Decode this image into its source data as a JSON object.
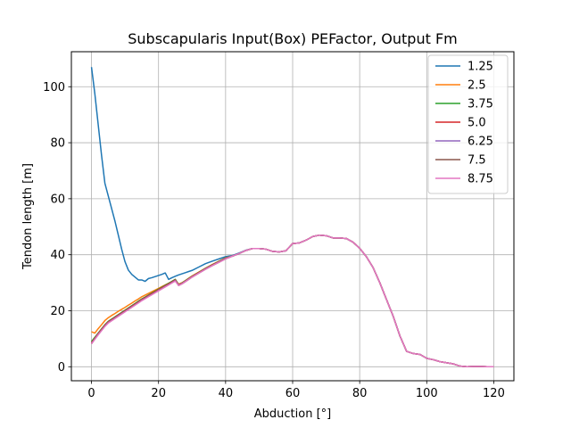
{
  "chart_data": {
    "type": "line",
    "title": "Subscapularis Input(Box) PEFactor, Output Fm",
    "xlabel": "Abduction [°]",
    "ylabel": "Tendon length [m]",
    "xlim": [
      -6,
      126
    ],
    "ylim": [
      -5,
      112.5
    ],
    "xticks": [
      0,
      20,
      40,
      60,
      80,
      100,
      120
    ],
    "yticks": [
      0,
      20,
      40,
      60,
      80,
      100
    ],
    "grid": true,
    "legend_position": "top-right",
    "series": [
      {
        "name": "1.25",
        "color": "#1f77b4",
        "x": [
          0,
          1,
          2,
          3,
          4,
          5,
          6,
          7,
          8,
          9,
          10,
          11,
          12,
          13,
          14,
          15,
          16,
          17,
          18,
          19,
          20,
          21,
          22,
          23,
          24,
          25,
          26,
          27,
          28,
          29,
          30,
          32,
          34,
          36,
          38,
          40,
          42,
          44,
          46,
          48,
          50,
          52,
          54,
          56,
          58,
          60,
          62,
          64,
          66,
          68,
          70,
          72,
          74,
          76,
          78,
          80,
          82,
          84,
          86,
          88,
          90,
          92,
          94,
          96,
          98,
          100,
          102,
          104,
          106,
          108,
          110,
          112,
          114,
          116,
          118,
          120
        ],
        "y": [
          107.0,
          97.5,
          86.5,
          75.5,
          65.5,
          61.0,
          56.5,
          52.0,
          47.0,
          42.0,
          37.5,
          34.5,
          33.0,
          32.0,
          31.0,
          31.0,
          30.5,
          31.5,
          31.8,
          32.2,
          32.6,
          33.0,
          33.5,
          31.2,
          31.8,
          32.3,
          32.8,
          33.2,
          33.6,
          34.0,
          34.4,
          35.6,
          36.8,
          37.7,
          38.5,
          39.3,
          39.7,
          40.6,
          41.6,
          42.2,
          42.2,
          42.0,
          41.2,
          41.0,
          41.4,
          44.0,
          44.2,
          45.2,
          46.5,
          47.0,
          46.8,
          46.0,
          46.0,
          45.8,
          44.5,
          42.3,
          39.3,
          35.4,
          30.0,
          24.0,
          18.0,
          11.0,
          5.5,
          4.7,
          4.4,
          3.0,
          2.5,
          1.8,
          1.4,
          1.0,
          0.2,
          0.0,
          0.1,
          0.1,
          0.0,
          0.0
        ]
      },
      {
        "name": "2.5",
        "color": "#ff7f0e",
        "x": [
          0,
          1,
          2,
          3,
          4,
          5,
          6,
          7,
          8,
          9,
          10,
          11,
          12,
          13,
          14,
          15,
          16,
          17,
          18,
          19,
          20,
          21,
          22,
          23,
          24,
          25,
          26,
          27,
          28,
          29,
          30,
          32,
          34,
          36,
          38,
          40,
          42,
          44,
          46,
          48,
          50,
          52,
          54,
          56,
          58,
          60,
          62,
          64,
          66,
          68,
          70,
          72,
          74,
          76,
          78,
          80,
          82,
          84,
          86,
          88,
          90,
          92,
          94,
          96,
          98,
          100,
          102,
          104,
          106,
          108,
          110,
          112,
          114,
          116,
          118,
          120
        ],
        "y": [
          12.5,
          12.0,
          13.6,
          15.0,
          16.5,
          17.5,
          18.3,
          19.0,
          19.8,
          20.5,
          21.2,
          22.0,
          22.7,
          23.5,
          24.2,
          25.0,
          25.6,
          26.2,
          26.8,
          27.4,
          28.0,
          28.6,
          29.2,
          29.8,
          30.4,
          31.0,
          29.5,
          30.0,
          30.8,
          31.6,
          32.4,
          33.8,
          35.2,
          36.5,
          37.7,
          38.9,
          39.5,
          40.4,
          41.5,
          42.2,
          42.2,
          42.0,
          41.2,
          41.0,
          41.4,
          44.0,
          44.2,
          45.2,
          46.5,
          47.0,
          46.8,
          46.0,
          46.0,
          45.8,
          44.5,
          42.3,
          39.3,
          35.4,
          30.0,
          24.0,
          18.0,
          11.0,
          5.5,
          4.7,
          4.4,
          3.0,
          2.5,
          1.8,
          1.4,
          1.0,
          0.2,
          0.0,
          0.1,
          0.1,
          0.0,
          0.0
        ]
      },
      {
        "name": "3.75",
        "color": "#2ca02c",
        "x": [
          0,
          1,
          2,
          3,
          4,
          5,
          6,
          7,
          8,
          9,
          10,
          11,
          12,
          13,
          14,
          15,
          16,
          17,
          18,
          19,
          20,
          21,
          22,
          23,
          24,
          25,
          26,
          27,
          28,
          29,
          30,
          32,
          34,
          36,
          38,
          40,
          42,
          44,
          46,
          48,
          50,
          52,
          54,
          56,
          58,
          60,
          62,
          64,
          66,
          68,
          70,
          72,
          74,
          76,
          78,
          80,
          82,
          84,
          86,
          88,
          90,
          92,
          94,
          96,
          98,
          100,
          102,
          104,
          106,
          108,
          110,
          112,
          114,
          116,
          118,
          120
        ],
        "y": [
          9.0,
          10.5,
          12.0,
          13.5,
          15.0,
          16.2,
          17.0,
          17.8,
          18.6,
          19.4,
          20.2,
          21.0,
          21.8,
          22.6,
          23.4,
          24.2,
          24.9,
          25.6,
          26.3,
          27.0,
          27.7,
          28.4,
          29.1,
          29.8,
          30.5,
          31.2,
          29.3,
          29.9,
          30.7,
          31.5,
          32.3,
          33.7,
          35.1,
          36.4,
          37.6,
          38.8,
          39.5,
          40.4,
          41.5,
          42.2,
          42.2,
          42.0,
          41.2,
          41.0,
          41.4,
          44.0,
          44.2,
          45.2,
          46.5,
          47.0,
          46.8,
          46.0,
          46.0,
          45.8,
          44.5,
          42.3,
          39.3,
          35.4,
          30.0,
          24.0,
          18.0,
          11.0,
          5.5,
          4.7,
          4.4,
          3.0,
          2.5,
          1.8,
          1.4,
          1.0,
          0.2,
          0.0,
          0.1,
          0.1,
          0.0,
          0.0
        ]
      },
      {
        "name": "5.0",
        "color": "#d62728",
        "x": [
          0,
          1,
          2,
          3,
          4,
          5,
          6,
          7,
          8,
          9,
          10,
          11,
          12,
          13,
          14,
          15,
          16,
          17,
          18,
          19,
          20,
          21,
          22,
          23,
          24,
          25,
          26,
          27,
          28,
          29,
          30,
          32,
          34,
          36,
          38,
          40,
          42,
          44,
          46,
          48,
          50,
          52,
          54,
          56,
          58,
          60,
          62,
          64,
          66,
          68,
          70,
          72,
          74,
          76,
          78,
          80,
          82,
          84,
          86,
          88,
          90,
          92,
          94,
          96,
          98,
          100,
          102,
          104,
          106,
          108,
          110,
          112,
          114,
          116,
          118,
          120
        ],
        "y": [
          8.5,
          10.2,
          11.8,
          13.3,
          14.8,
          16.0,
          16.8,
          17.6,
          18.4,
          19.2,
          20.0,
          20.8,
          21.6,
          22.4,
          23.2,
          24.0,
          24.7,
          25.4,
          26.1,
          26.8,
          27.5,
          28.2,
          28.9,
          29.6,
          30.3,
          31.0,
          29.2,
          29.8,
          30.6,
          31.4,
          32.2,
          33.6,
          35.0,
          36.3,
          37.5,
          38.7,
          39.5,
          40.4,
          41.5,
          42.2,
          42.2,
          42.0,
          41.2,
          41.0,
          41.4,
          44.0,
          44.2,
          45.2,
          46.5,
          47.0,
          46.8,
          46.0,
          46.0,
          45.8,
          44.5,
          42.3,
          39.3,
          35.4,
          30.0,
          24.0,
          18.0,
          11.0,
          5.5,
          4.7,
          4.4,
          3.0,
          2.5,
          1.8,
          1.4,
          1.0,
          0.2,
          0.0,
          0.1,
          0.1,
          0.0,
          0.0
        ]
      },
      {
        "name": "6.25",
        "color": "#9467bd",
        "x": [
          0,
          1,
          2,
          3,
          4,
          5,
          6,
          7,
          8,
          9,
          10,
          11,
          12,
          13,
          14,
          15,
          16,
          17,
          18,
          19,
          20,
          21,
          22,
          23,
          24,
          25,
          26,
          27,
          28,
          29,
          30,
          32,
          34,
          36,
          38,
          40,
          42,
          44,
          46,
          48,
          50,
          52,
          54,
          56,
          58,
          60,
          62,
          64,
          66,
          68,
          70,
          72,
          74,
          76,
          78,
          80,
          82,
          84,
          86,
          88,
          90,
          92,
          94,
          96,
          98,
          100,
          102,
          104,
          106,
          108,
          110,
          112,
          114,
          116,
          118,
          120
        ],
        "y": [
          8.3,
          10.0,
          11.6,
          13.1,
          14.6,
          15.8,
          16.6,
          17.4,
          18.2,
          19.0,
          19.8,
          20.6,
          21.4,
          22.2,
          23.0,
          23.8,
          24.5,
          25.2,
          25.9,
          26.6,
          27.3,
          28.0,
          28.7,
          29.4,
          30.1,
          30.8,
          29.1,
          29.7,
          30.5,
          31.3,
          32.1,
          33.5,
          34.9,
          36.2,
          37.4,
          38.6,
          39.5,
          40.4,
          41.5,
          42.2,
          42.2,
          42.0,
          41.2,
          41.0,
          41.4,
          44.0,
          44.2,
          45.2,
          46.5,
          47.0,
          46.8,
          46.0,
          46.0,
          45.8,
          44.5,
          42.3,
          39.3,
          35.4,
          30.0,
          24.0,
          18.0,
          11.0,
          5.5,
          4.7,
          4.4,
          3.0,
          2.5,
          1.8,
          1.4,
          1.0,
          0.2,
          0.0,
          0.1,
          0.1,
          0.0,
          0.0
        ]
      },
      {
        "name": "7.5",
        "color": "#8c564b",
        "x": [
          0,
          1,
          2,
          3,
          4,
          5,
          6,
          7,
          8,
          9,
          10,
          11,
          12,
          13,
          14,
          15,
          16,
          17,
          18,
          19,
          20,
          21,
          22,
          23,
          24,
          25,
          26,
          27,
          28,
          29,
          30,
          32,
          34,
          36,
          38,
          40,
          42,
          44,
          46,
          48,
          50,
          52,
          54,
          56,
          58,
          60,
          62,
          64,
          66,
          68,
          70,
          72,
          74,
          76,
          78,
          80,
          82,
          84,
          86,
          88,
          90,
          92,
          94,
          96,
          98,
          100,
          102,
          104,
          106,
          108,
          110,
          112,
          114,
          116,
          118,
          120
        ],
        "y": [
          8.2,
          9.9,
          11.5,
          13.0,
          14.5,
          15.7,
          16.5,
          17.3,
          18.1,
          18.9,
          19.7,
          20.5,
          21.3,
          22.1,
          22.9,
          23.7,
          24.4,
          25.1,
          25.8,
          26.5,
          27.2,
          27.9,
          28.6,
          29.3,
          30.0,
          30.7,
          29.0,
          29.6,
          30.4,
          31.2,
          32.0,
          33.4,
          34.8,
          36.1,
          37.3,
          38.5,
          39.5,
          40.4,
          41.5,
          42.2,
          42.2,
          42.0,
          41.2,
          41.0,
          41.4,
          44.0,
          44.2,
          45.2,
          46.5,
          47.0,
          46.8,
          46.0,
          46.0,
          45.8,
          44.5,
          42.3,
          39.3,
          35.4,
          30.0,
          24.0,
          18.0,
          11.0,
          5.5,
          4.7,
          4.4,
          3.0,
          2.5,
          1.8,
          1.4,
          1.0,
          0.2,
          0.0,
          0.1,
          0.1,
          0.0,
          0.0
        ]
      },
      {
        "name": "8.75",
        "color": "#e377c2",
        "x": [
          0,
          1,
          2,
          3,
          4,
          5,
          6,
          7,
          8,
          9,
          10,
          11,
          12,
          13,
          14,
          15,
          16,
          17,
          18,
          19,
          20,
          21,
          22,
          23,
          24,
          25,
          26,
          27,
          28,
          29,
          30,
          32,
          34,
          36,
          38,
          40,
          42,
          44,
          46,
          48,
          50,
          52,
          54,
          56,
          58,
          60,
          62,
          64,
          66,
          68,
          70,
          72,
          74,
          76,
          78,
          80,
          82,
          84,
          86,
          88,
          90,
          92,
          94,
          96,
          98,
          100,
          102,
          104,
          106,
          108,
          110,
          112,
          114,
          116,
          118,
          120
        ],
        "y": [
          8.2,
          9.8,
          11.4,
          12.9,
          14.4,
          15.6,
          16.4,
          17.2,
          18.0,
          18.8,
          19.6,
          20.4,
          21.2,
          22.0,
          22.8,
          23.6,
          24.3,
          25.0,
          25.7,
          26.4,
          27.1,
          27.8,
          28.5,
          29.2,
          29.9,
          30.6,
          29.0,
          29.6,
          30.4,
          31.2,
          32.0,
          33.4,
          34.8,
          36.1,
          37.3,
          38.5,
          39.5,
          40.4,
          41.5,
          42.2,
          42.2,
          42.0,
          41.2,
          41.0,
          41.4,
          44.0,
          44.2,
          45.2,
          46.5,
          47.0,
          46.8,
          46.0,
          46.0,
          45.8,
          44.5,
          42.3,
          39.3,
          35.4,
          30.0,
          24.0,
          18.0,
          11.0,
          5.5,
          4.7,
          4.4,
          3.0,
          2.5,
          1.8,
          1.4,
          1.0,
          0.2,
          0.0,
          0.1,
          0.1,
          0.0,
          0.0
        ]
      }
    ]
  }
}
